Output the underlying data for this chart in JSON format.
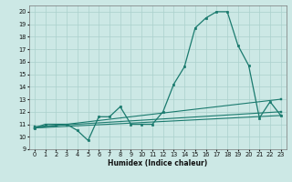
{
  "xlabel": "Humidex (Indice chaleur)",
  "bg_color": "#cce8e5",
  "grid_color": "#aad0cc",
  "line_color": "#1a7a6e",
  "xlim": [
    -0.5,
    23.5
  ],
  "ylim": [
    9,
    20.5
  ],
  "xticks": [
    0,
    1,
    2,
    3,
    4,
    5,
    6,
    7,
    8,
    9,
    10,
    11,
    12,
    13,
    14,
    15,
    16,
    17,
    18,
    19,
    20,
    21,
    22,
    23
  ],
  "yticks": [
    9,
    10,
    11,
    12,
    13,
    14,
    15,
    16,
    17,
    18,
    19,
    20
  ],
  "line1_x": [
    0,
    1,
    2,
    3,
    4,
    5,
    6,
    7,
    8,
    9,
    10,
    11,
    12,
    13,
    14,
    15,
    16,
    17,
    18,
    19,
    20,
    21,
    22,
    23
  ],
  "line1_y": [
    10.7,
    11.0,
    11.0,
    11.0,
    10.5,
    9.7,
    11.6,
    11.6,
    12.4,
    11.0,
    11.0,
    11.0,
    12.0,
    14.2,
    15.6,
    18.7,
    19.5,
    20.0,
    20.0,
    17.3,
    15.7,
    11.5,
    12.8,
    11.7
  ],
  "line2_x": [
    0,
    23
  ],
  "line2_y": [
    10.7,
    13.0
  ],
  "line3_x": [
    0,
    23
  ],
  "line3_y": [
    10.8,
    12.0
  ],
  "line4_x": [
    0,
    23
  ],
  "line4_y": [
    10.7,
    11.7
  ]
}
